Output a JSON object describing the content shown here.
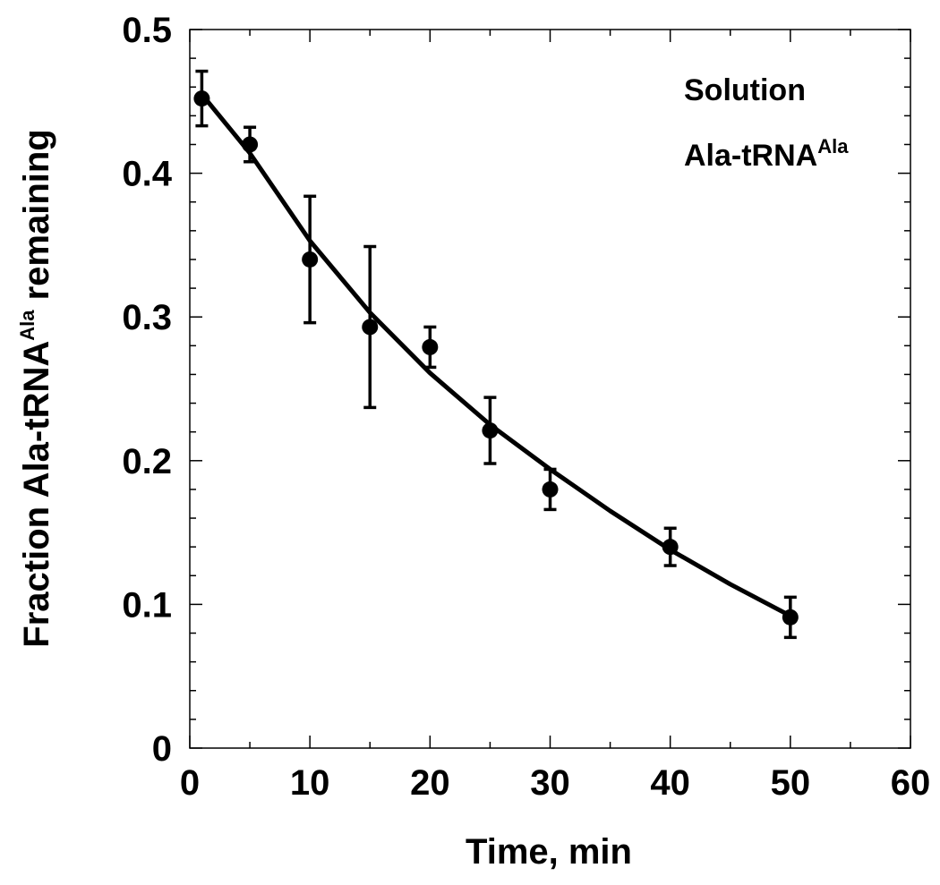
{
  "chart_data": {
    "type": "scatter",
    "title": "",
    "xlabel": "Time, min",
    "ylabel": {
      "prefix": "Fraction Ala-tRNA",
      "superscript": "Ala",
      "suffix": " remaining"
    },
    "xlim": [
      0,
      60
    ],
    "ylim": [
      0,
      0.5
    ],
    "x_ticks": [
      "0",
      "10",
      "20",
      "30",
      "40",
      "50",
      "60"
    ],
    "y_ticks": [
      "0",
      "0.1",
      "0.2",
      "0.3",
      "0.4",
      "0.5"
    ],
    "grid": false,
    "annotations": {
      "line1": "Solution",
      "line2_base": "Ala-tRNA",
      "line2_superscript": "Ala"
    },
    "series": [
      {
        "points": [
          {
            "x": 1,
            "y": 0.452,
            "err": 0.019
          },
          {
            "x": 5,
            "y": 0.42,
            "err": 0.012
          },
          {
            "x": 10,
            "y": 0.34,
            "err": 0.044
          },
          {
            "x": 15,
            "y": 0.293,
            "err": 0.056
          },
          {
            "x": 20,
            "y": 0.279,
            "err": 0.014
          },
          {
            "x": 25,
            "y": 0.221,
            "err": 0.023
          },
          {
            "x": 30,
            "y": 0.18,
            "err": 0.014
          },
          {
            "x": 40,
            "y": 0.14,
            "err": 0.013
          },
          {
            "x": 50,
            "y": 0.091,
            "err": 0.014
          }
        ],
        "fit": {
          "model": "exponential",
          "x": [
            1,
            5,
            10,
            15,
            20,
            25,
            30,
            35,
            40,
            45,
            50
          ],
          "y": [
            0.455,
            0.414,
            0.353,
            0.303,
            0.261,
            0.225,
            0.194,
            0.165,
            0.138,
            0.114,
            0.092
          ]
        }
      }
    ]
  }
}
